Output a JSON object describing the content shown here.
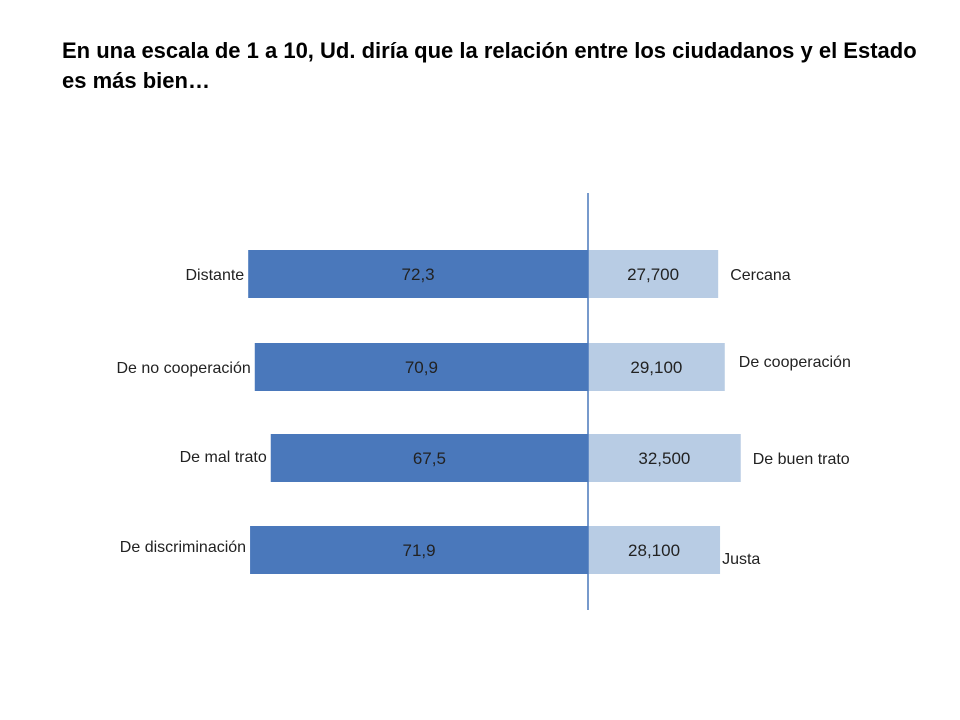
{
  "title": "En una escala de 1 a 10, Ud. diría que la relación entre los ciudadanos y el Estado es más bien…",
  "colors": {
    "negative": "#4a78bb",
    "positive": "#b8cce4",
    "axis": "#4a78bb"
  },
  "chart_data": {
    "type": "bar",
    "orientation": "horizontal-diverging",
    "categories_left": [
      "Distante",
      "De no cooperación",
      "De mal trato",
      "De discriminación"
    ],
    "categories_right": [
      "Cercana",
      "De cooperación",
      "De buen trato",
      "Justa"
    ],
    "series": [
      {
        "values": [
          72.3,
          70.9,
          67.5,
          71.9
        ],
        "labels": [
          "72,3",
          "70,9",
          "67,5",
          "71,9"
        ]
      },
      {
        "values": [
          27.7,
          29.1,
          32.5,
          28.1
        ],
        "labels": [
          "27,700",
          "29,100",
          "32,500",
          "28,100"
        ]
      }
    ],
    "grid": false,
    "legend": "none"
  }
}
